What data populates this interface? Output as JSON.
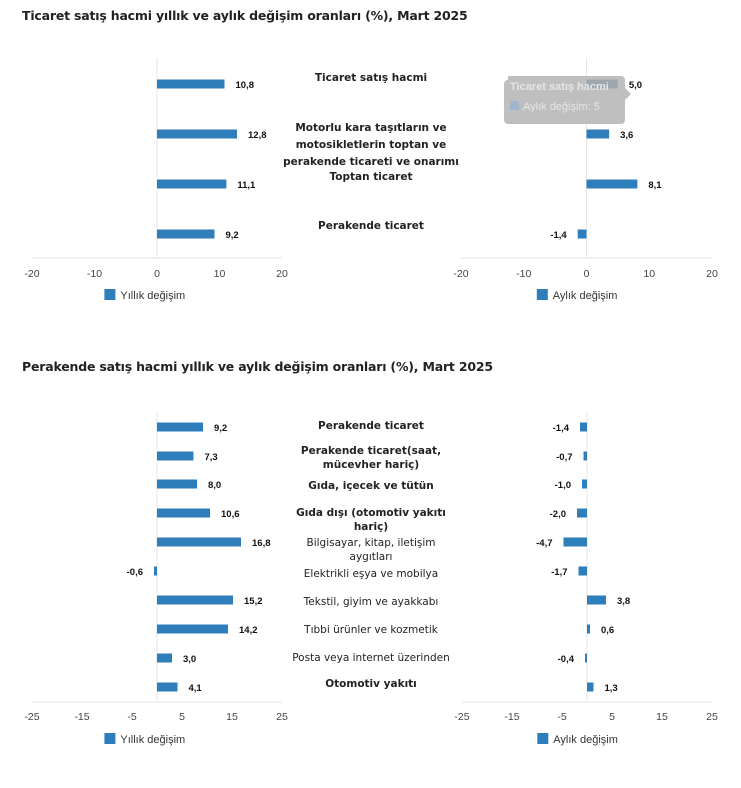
{
  "colors": {
    "bar": "#2f7ebc",
    "bar_hover": "#245f8c",
    "grid": "#e6e6e6",
    "tooltip_bg": "#b4b4b4"
  },
  "chart_data": [
    {
      "type": "bar",
      "orientation": "horizontal",
      "title": "Ticaret satış hacmi yıllık ve aylık değişim oranları (%), Mart 2025",
      "categories": [
        "Ticaret satış hacmi",
        "Motorlu kara taşıtların ve motosikletlerin toptan ve perakende ticareti ve onarımı",
        "Toptan ticaret",
        "Perakende ticaret"
      ],
      "category_lines": [
        [
          "Ticaret satış hacmi"
        ],
        [
          "Motorlu kara taşıtların ve",
          "motosikletlerin toptan ve",
          "perakende ticareti ve onarımı"
        ],
        [
          "Toptan ticaret"
        ],
        [
          "Perakende ticaret"
        ]
      ],
      "category_bold": [
        true,
        true,
        true,
        true
      ],
      "panels": [
        {
          "series_name": "Yıllık değişim",
          "values": [
            10.8,
            12.8,
            11.1,
            9.2
          ],
          "labels": [
            "10,8",
            "12,8",
            "11,1",
            "9,2"
          ],
          "xlim": [
            -20,
            20
          ],
          "ticks": [
            -20,
            -10,
            0,
            10,
            20
          ],
          "tick_labels": [
            "-20",
            "-10",
            "0",
            "10",
            "20"
          ],
          "legend": "Yıllık değişim"
        },
        {
          "series_name": "Aylık değişim",
          "values": [
            5.0,
            3.6,
            8.1,
            -1.4
          ],
          "labels": [
            "5,0",
            "3,6",
            "8,1",
            "-1,4"
          ],
          "xlim": [
            -20,
            20
          ],
          "ticks": [
            -20,
            -10,
            0,
            10,
            20
          ],
          "tick_labels": [
            "-20",
            "-10",
            "0",
            "10",
            "20"
          ],
          "legend": "Aylık değişim",
          "tooltip": {
            "category_index": 0,
            "title": "Ticaret satış hacmi",
            "text": "Aylık değişim: 5"
          }
        }
      ]
    },
    {
      "type": "bar",
      "orientation": "horizontal",
      "title": "Perakende satış hacmi yıllık ve aylık değişim oranları (%), Mart 2025",
      "categories": [
        "Perakende ticaret",
        "Perakende ticaret(saat, mücevher hariç)",
        "Gıda, içecek ve tütün",
        "Gıda dışı (otomotiv yakıtı hariç)",
        "Bilgisayar, kitap, iletişim aygıtları",
        "Elektrikli eşya ve mobilya",
        "Tekstil, giyim ve ayakkabı",
        "Tıbbi ürünler ve kozmetik",
        "Posta veya internet üzerinden",
        "Otomotiv yakıtı"
      ],
      "category_lines": [
        [
          "Perakende ticaret"
        ],
        [
          "Perakende ticaret(saat,",
          "mücevher hariç)"
        ],
        [
          "Gıda, içecek ve tütün"
        ],
        [
          "Gıda dışı (otomotiv yakıtı",
          "hariç)"
        ],
        [
          "Bilgisayar, kitap, iletişim",
          "aygıtları"
        ],
        [
          "Elektrikli eşya ve mobilya"
        ],
        [
          "Tekstil, giyim ve ayakkabı"
        ],
        [
          "Tıbbi ürünler ve kozmetik"
        ],
        [
          "Posta veya internet üzerinden"
        ],
        [
          "Otomotiv yakıtı"
        ]
      ],
      "category_bold": [
        true,
        true,
        true,
        true,
        false,
        false,
        false,
        false,
        false,
        true
      ],
      "panels": [
        {
          "series_name": "Yıllık değişim",
          "values": [
            9.2,
            7.3,
            8.0,
            10.6,
            16.8,
            -0.6,
            15.2,
            14.2,
            3.0,
            4.1
          ],
          "labels": [
            "9,2",
            "7,3",
            "8,0",
            "10,6",
            "16,8",
            "-0,6",
            "15,2",
            "14,2",
            "3,0",
            "4,1"
          ],
          "xlim": [
            -25,
            25
          ],
          "ticks": [
            -25,
            -15,
            -5,
            5,
            15,
            25
          ],
          "tick_labels": [
            "-25",
            "-15",
            "-5",
            "5",
            "15",
            "25"
          ],
          "legend": "Yıllık değişim"
        },
        {
          "series_name": "Aylık değişim",
          "values": [
            -1.4,
            -0.7,
            -1.0,
            -2.0,
            -4.7,
            -1.7,
            3.8,
            0.6,
            -0.4,
            1.3
          ],
          "labels": [
            "-1,4",
            "-0,7",
            "-1,0",
            "-2,0",
            "-4,7",
            "-1,7",
            "3,8",
            "0,6",
            "-0,4",
            "1,3"
          ],
          "xlim": [
            -25,
            25
          ],
          "ticks": [
            -25,
            -15,
            -5,
            5,
            15,
            25
          ],
          "tick_labels": [
            "-25",
            "-15",
            "-5",
            "5",
            "15",
            "25"
          ],
          "legend": "Aylık değişim"
        }
      ]
    }
  ]
}
